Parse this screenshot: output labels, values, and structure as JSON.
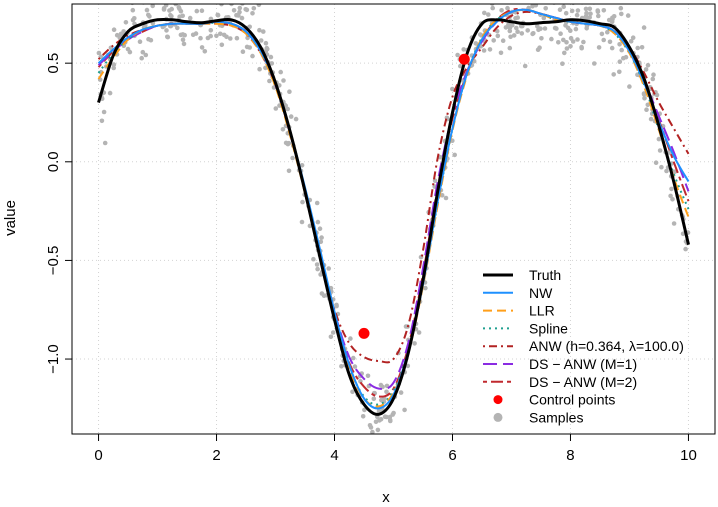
{
  "chart_data": {
    "type": "line",
    "xlabel": "x",
    "ylabel": "value",
    "xlim": [
      -0.45,
      10.45
    ],
    "ylim": [
      -1.38,
      0.8
    ],
    "xticks": [
      0,
      2,
      4,
      6,
      8,
      10
    ],
    "xtick_labels": [
      "0",
      "2",
      "4",
      "6",
      "8",
      "10"
    ],
    "yticks": [
      -1.0,
      -0.5,
      0.0,
      0.5
    ],
    "ytick_labels": [
      "−1.0",
      "−0.5",
      "0.0",
      "0.5"
    ],
    "grid": true,
    "legend_position": "bottom-right",
    "control_points": {
      "name": "Control points",
      "color": "#ff0000",
      "points": [
        {
          "x": 4.5,
          "y": -0.87
        },
        {
          "x": 6.2,
          "y": 0.52
        }
      ]
    },
    "samples": {
      "name": "Samples",
      "color": "#b4b4b4",
      "count": 600,
      "noise_sd": 0.09
    },
    "series": [
      {
        "name": "Truth",
        "color": "#000000",
        "style": "solid",
        "x": [
          0,
          0.25,
          0.5,
          0.75,
          1,
          1.25,
          1.5,
          1.75,
          2,
          2.25,
          2.5,
          2.75,
          3,
          3.25,
          3.5,
          3.75,
          4,
          4.25,
          4.5,
          4.75,
          5,
          5.25,
          5.5,
          5.75,
          6,
          6.25,
          6.5,
          6.75,
          7,
          7.25,
          7.5,
          7.75,
          8,
          8.25,
          8.5,
          8.75,
          9,
          9.25,
          9.5,
          9.75,
          10
        ],
        "y": [
          0.3,
          0.54,
          0.66,
          0.7,
          0.72,
          0.72,
          0.71,
          0.705,
          0.715,
          0.72,
          0.68,
          0.58,
          0.4,
          0.15,
          -0.15,
          -0.48,
          -0.8,
          -1.08,
          -1.23,
          -1.28,
          -1.2,
          -0.97,
          -0.6,
          -0.15,
          0.25,
          0.55,
          0.7,
          0.72,
          0.71,
          0.7,
          0.705,
          0.71,
          0.72,
          0.715,
          0.7,
          0.68,
          0.58,
          0.42,
          0.18,
          -0.1,
          -0.42
        ]
      },
      {
        "name": "NW",
        "color": "#1e90ff",
        "style": "solid",
        "x": [
          0,
          0.25,
          0.5,
          0.75,
          1,
          1.25,
          1.5,
          1.75,
          2,
          2.25,
          2.5,
          2.75,
          3,
          3.25,
          3.5,
          3.75,
          4,
          4.25,
          4.5,
          4.75,
          5,
          5.25,
          5.5,
          5.75,
          6,
          6.25,
          6.5,
          6.75,
          7,
          7.25,
          7.5,
          7.75,
          8,
          8.25,
          8.5,
          8.75,
          9,
          9.25,
          9.5,
          9.75,
          10
        ],
        "y": [
          0.5,
          0.57,
          0.63,
          0.67,
          0.69,
          0.7,
          0.7,
          0.7,
          0.71,
          0.7,
          0.66,
          0.56,
          0.4,
          0.15,
          -0.13,
          -0.44,
          -0.76,
          -1.03,
          -1.2,
          -1.25,
          -1.18,
          -0.96,
          -0.62,
          -0.2,
          0.17,
          0.45,
          0.62,
          0.71,
          0.76,
          0.77,
          0.75,
          0.73,
          0.71,
          0.7,
          0.69,
          0.66,
          0.56,
          0.4,
          0.2,
          0.03,
          -0.1
        ]
      },
      {
        "name": "LLR",
        "color": "#ff9f1a",
        "style": "dashed",
        "x": [
          0,
          0.25,
          0.5,
          0.75,
          1,
          1.25,
          1.5,
          1.75,
          2,
          2.25,
          2.5,
          2.75,
          3,
          3.25,
          3.5,
          3.75,
          4,
          4.25,
          4.5,
          4.75,
          5,
          5.25,
          5.5,
          5.75,
          6,
          6.25,
          6.5,
          6.75,
          7,
          7.25,
          7.5,
          7.75,
          8,
          8.25,
          8.5,
          8.75,
          9,
          9.25,
          9.5,
          9.75,
          10
        ],
        "y": [
          0.42,
          0.53,
          0.62,
          0.67,
          0.69,
          0.7,
          0.7,
          0.7,
          0.7,
          0.69,
          0.65,
          0.55,
          0.38,
          0.13,
          -0.16,
          -0.47,
          -0.78,
          -1.05,
          -1.2,
          -1.24,
          -1.17,
          -0.97,
          -0.63,
          -0.22,
          0.16,
          0.44,
          0.63,
          0.72,
          0.76,
          0.77,
          0.75,
          0.72,
          0.71,
          0.7,
          0.69,
          0.65,
          0.55,
          0.38,
          0.16,
          -0.08,
          -0.28
        ]
      },
      {
        "name": "Spline",
        "color": "#20a090",
        "style": "dotted",
        "x": [
          0,
          0.25,
          0.5,
          0.75,
          1,
          1.25,
          1.5,
          1.75,
          2,
          2.25,
          2.5,
          2.75,
          3,
          3.25,
          3.5,
          3.75,
          4,
          4.25,
          4.5,
          4.75,
          5,
          5.25,
          5.5,
          5.75,
          6,
          6.25,
          6.5,
          6.75,
          7,
          7.25,
          7.5,
          7.75,
          8,
          8.25,
          8.5,
          8.75,
          9,
          9.25,
          9.5,
          9.75,
          10
        ],
        "y": [
          0.45,
          0.55,
          0.62,
          0.67,
          0.69,
          0.7,
          0.7,
          0.7,
          0.705,
          0.7,
          0.66,
          0.56,
          0.39,
          0.14,
          -0.15,
          -0.46,
          -0.77,
          -1.04,
          -1.19,
          -1.23,
          -1.16,
          -0.96,
          -0.62,
          -0.21,
          0.17,
          0.45,
          0.63,
          0.72,
          0.76,
          0.77,
          0.75,
          0.72,
          0.71,
          0.7,
          0.69,
          0.65,
          0.55,
          0.39,
          0.16,
          -0.06,
          -0.24
        ]
      },
      {
        "name": "ANW (h=0.364, λ=100.0)",
        "color": "#b22222",
        "style": "dotdash",
        "x": [
          0,
          0.25,
          0.5,
          0.75,
          1,
          1.25,
          1.5,
          1.75,
          2,
          2.25,
          2.5,
          2.75,
          3,
          3.25,
          3.5,
          3.75,
          4,
          4.25,
          4.5,
          4.75,
          5,
          5.25,
          5.5,
          5.75,
          6,
          6.25,
          6.5,
          6.75,
          7,
          7.25,
          7.5,
          7.75,
          8,
          8.25,
          8.5,
          8.75,
          9,
          9.25,
          9.5,
          9.75,
          10
        ],
        "y": [
          0.52,
          0.59,
          0.64,
          0.67,
          0.69,
          0.7,
          0.7,
          0.7,
          0.7,
          0.69,
          0.65,
          0.55,
          0.39,
          0.14,
          -0.15,
          -0.46,
          -0.75,
          -0.92,
          -0.99,
          -1.01,
          -1.0,
          -0.83,
          -0.45,
          0.02,
          0.33,
          0.48,
          0.58,
          0.68,
          0.74,
          0.76,
          0.75,
          0.73,
          0.71,
          0.7,
          0.69,
          0.66,
          0.58,
          0.45,
          0.3,
          0.17,
          0.04
        ]
      },
      {
        "name": "DS − ANW (M=1)",
        "color": "#8a2be2",
        "style": "longdash",
        "x": [
          0,
          0.25,
          0.5,
          0.75,
          1,
          1.25,
          1.5,
          1.75,
          2,
          2.25,
          2.5,
          2.75,
          3,
          3.25,
          3.5,
          3.75,
          4,
          4.25,
          4.5,
          4.75,
          5,
          5.25,
          5.5,
          5.75,
          6,
          6.25,
          6.5,
          6.75,
          7,
          7.25,
          7.5,
          7.75,
          8,
          8.25,
          8.5,
          8.75,
          9,
          9.25,
          9.5,
          9.75,
          10
        ],
        "y": [
          0.49,
          0.56,
          0.62,
          0.66,
          0.69,
          0.7,
          0.7,
          0.7,
          0.71,
          0.7,
          0.66,
          0.56,
          0.39,
          0.14,
          -0.15,
          -0.46,
          -0.76,
          -0.99,
          -1.1,
          -1.15,
          -1.12,
          -0.92,
          -0.54,
          -0.1,
          0.24,
          0.46,
          0.61,
          0.71,
          0.76,
          0.77,
          0.75,
          0.73,
          0.71,
          0.7,
          0.69,
          0.66,
          0.56,
          0.41,
          0.23,
          0.05,
          -0.15
        ]
      },
      {
        "name": "DS − ANW (M=2)",
        "color": "#c0292e",
        "style": "twodash",
        "x": [
          0,
          0.25,
          0.5,
          0.75,
          1,
          1.25,
          1.5,
          1.75,
          2,
          2.25,
          2.5,
          2.75,
          3,
          3.25,
          3.5,
          3.75,
          4,
          4.25,
          4.5,
          4.75,
          5,
          5.25,
          5.5,
          5.75,
          6,
          6.25,
          6.5,
          6.75,
          7,
          7.25,
          7.5,
          7.75,
          8,
          8.25,
          8.5,
          8.75,
          9,
          9.25,
          9.5,
          9.75,
          10
        ],
        "y": [
          0.48,
          0.56,
          0.62,
          0.66,
          0.69,
          0.7,
          0.7,
          0.7,
          0.71,
          0.7,
          0.66,
          0.56,
          0.39,
          0.14,
          -0.15,
          -0.46,
          -0.77,
          -1.02,
          -1.14,
          -1.19,
          -1.15,
          -0.94,
          -0.57,
          -0.13,
          0.22,
          0.45,
          0.62,
          0.72,
          0.77,
          0.77,
          0.75,
          0.73,
          0.71,
          0.7,
          0.69,
          0.66,
          0.56,
          0.4,
          0.21,
          0.0,
          -0.2
        ]
      }
    ]
  }
}
